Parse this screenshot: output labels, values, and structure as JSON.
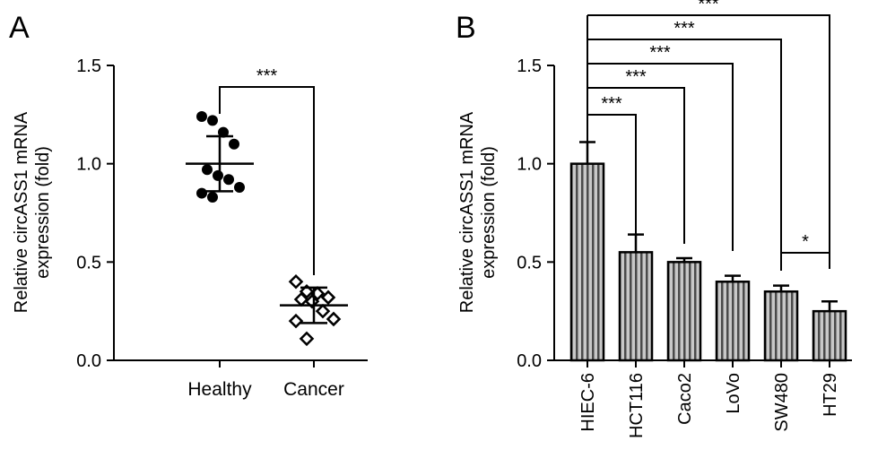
{
  "panels": {
    "a": {
      "letter": "A"
    },
    "b": {
      "letter": "B"
    }
  },
  "chart_data": [
    {
      "type": "scatter",
      "panel": "A",
      "title": "",
      "xlabel": "",
      "ylabel": "Relative circASS1 mRNA expression (fold)",
      "ylabel_lines": [
        "Relative circASS1 mRNA",
        "expression (fold)"
      ],
      "ylim": [
        0,
        1.5
      ],
      "yticks": [
        "0.0",
        "0.5",
        "1.0",
        "1.5"
      ],
      "grid": false,
      "categories": [
        "Healthy",
        "Cancer"
      ],
      "series": [
        {
          "name": "Healthy",
          "marker": "filled-circle",
          "values": [
            1.24,
            1.22,
            1.16,
            1.1,
            0.97,
            0.94,
            0.92,
            0.88,
            0.85,
            0.83
          ],
          "mean": 1.0,
          "sd": 0.14
        },
        {
          "name": "Cancer",
          "marker": "open-diamond",
          "values": [
            0.4,
            0.35,
            0.34,
            0.32,
            0.31,
            0.3,
            0.25,
            0.21,
            0.2,
            0.11
          ],
          "mean": 0.28,
          "sd": 0.09
        }
      ],
      "annotations": [
        {
          "from": "Healthy",
          "to": "Cancer",
          "label": "***"
        }
      ]
    },
    {
      "type": "bar",
      "panel": "B",
      "title": "",
      "xlabel": "",
      "ylabel": "Relative circASS1 mRNA expression (fold)",
      "ylabel_lines": [
        "Relative circASS1 mRNA",
        "expression (fold)"
      ],
      "ylim": [
        0,
        1.5
      ],
      "yticks": [
        "0.0",
        "0.5",
        "1.0",
        "1.5"
      ],
      "grid": false,
      "categories": [
        "HIEC-6",
        "HCT116",
        "Caco2",
        "LoVo",
        "SW480",
        "HT29"
      ],
      "values": [
        1.0,
        0.55,
        0.5,
        0.4,
        0.35,
        0.25
      ],
      "errors": [
        0.11,
        0.09,
        0.02,
        0.03,
        0.03,
        0.05
      ],
      "annotations": [
        {
          "from": "HIEC-6",
          "to": "HCT116",
          "label": "***"
        },
        {
          "from": "HIEC-6",
          "to": "Caco2",
          "label": "***"
        },
        {
          "from": "HIEC-6",
          "to": "LoVo",
          "label": "***"
        },
        {
          "from": "HIEC-6",
          "to": "SW480",
          "label": "***"
        },
        {
          "from": "HIEC-6",
          "to": "HT29",
          "label": "***"
        },
        {
          "from": "SW480",
          "to": "HT29",
          "label": "*"
        }
      ]
    }
  ]
}
